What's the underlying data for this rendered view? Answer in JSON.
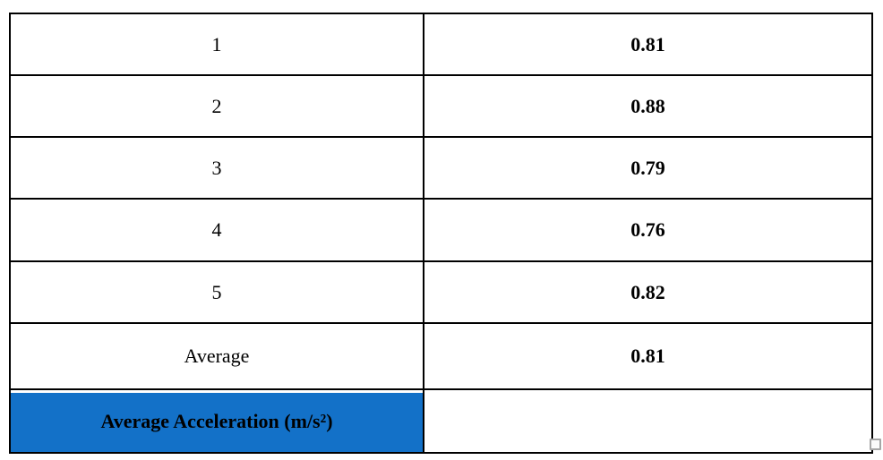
{
  "table": {
    "border_color": "#000000",
    "rows": [
      {
        "trial": "1",
        "value": "0.81"
      },
      {
        "trial": "2",
        "value": "0.88"
      },
      {
        "trial": "3",
        "value": "0.79"
      },
      {
        "trial": "4",
        "value": "0.76"
      },
      {
        "trial": "5",
        "value": "0.82"
      },
      {
        "trial": "Average",
        "value": "0.81"
      }
    ],
    "footer": {
      "label": "Average Acceleration (m/s²)",
      "value": "",
      "highlight_color": "#1371c8",
      "label_text_color": "#ffffff"
    }
  },
  "resize_handle": {
    "border_color": "#a6a6a6",
    "fill_color": "#fafafa"
  }
}
